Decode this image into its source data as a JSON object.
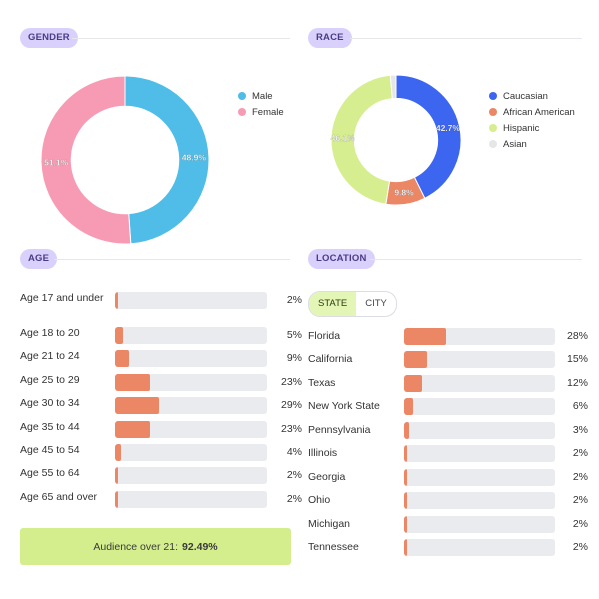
{
  "sections": {
    "gender": "GENDER",
    "race": "RACE",
    "age": "AGE",
    "location": "LOCATION"
  },
  "colors": {
    "male": "#4fbde8",
    "female": "#f79bb5",
    "caucasian": "#3d66f0",
    "african_american": "#ec8765",
    "hispanic": "#d6ee90",
    "asian": "#e6e6e6",
    "bar": "#ec8765"
  },
  "location_toggle": {
    "state": "STATE",
    "city": "CITY"
  },
  "audience": {
    "label": "Audience over 21:",
    "value": "92.49%"
  },
  "chart_data": [
    {
      "type": "pie",
      "title": "GENDER",
      "categories": [
        "Male",
        "Female"
      ],
      "values": [
        48.9,
        51.1
      ],
      "labels": [
        "48.9%",
        "51.1%"
      ],
      "legend": "right"
    },
    {
      "type": "pie",
      "title": "RACE",
      "categories": [
        "Caucasian",
        "African American",
        "Hispanic",
        "Asian"
      ],
      "values": [
        42.7,
        9.8,
        46.1,
        1.4
      ],
      "labels": [
        "42.7%",
        "9.8%",
        "46.1%",
        ""
      ],
      "legend": "right"
    },
    {
      "type": "bar",
      "title": "AGE",
      "categories": [
        "Age 17 and under",
        "Age 18 to 20",
        "Age 21 to 24",
        "Age 25 to 29",
        "Age 30 to 34",
        "Age 35 to 44",
        "Age 45 to 54",
        "Age 55 to 64",
        "Age 65 and over"
      ],
      "values": [
        2,
        5,
        9,
        23,
        29,
        23,
        4,
        2,
        2
      ],
      "labels": [
        "2%",
        "5%",
        "9%",
        "23%",
        "29%",
        "23%",
        "4%",
        "2%",
        "2%"
      ],
      "xlim": [
        0,
        100
      ]
    },
    {
      "type": "bar",
      "title": "LOCATION",
      "categories": [
        "Florida",
        "California",
        "Texas",
        "New York State",
        "Pennsylvania",
        "Illinois",
        "Georgia",
        "Ohio",
        "Michigan",
        "Tennessee"
      ],
      "values": [
        28,
        15,
        12,
        6,
        3,
        2,
        2,
        2,
        2,
        2
      ],
      "labels": [
        "28%",
        "15%",
        "12%",
        "6%",
        "3%",
        "2%",
        "2%",
        "2%",
        "2%",
        "2%"
      ],
      "xlim": [
        0,
        100
      ]
    }
  ]
}
